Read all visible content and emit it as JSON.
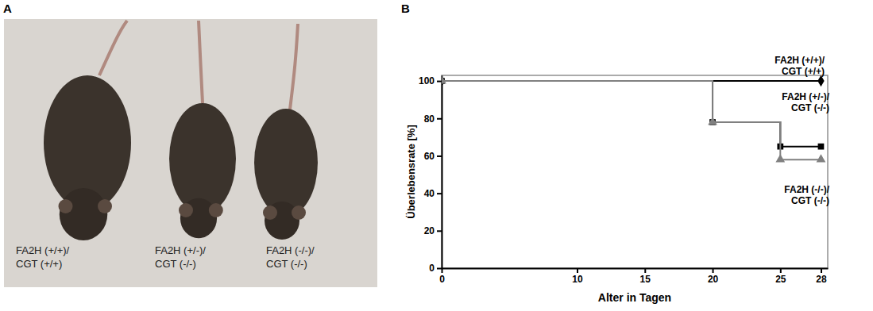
{
  "panel_labels": [
    "A",
    "B"
  ],
  "photo": {
    "labels": [
      "FA2H (+/+)/\nCGT (+/+)",
      "FA2H (+/-)/\nCGT (-/-)",
      "FA2H (-/-)/\nCGT (-/-)"
    ]
  },
  "chart_data": {
    "type": "line",
    "x_label": "Alter in Tagen",
    "y_label": "Überlebensrate [%]",
    "xlim": [
      0,
      28.5
    ],
    "ylim": [
      0,
      103
    ],
    "xticks": [
      0,
      10,
      15,
      20,
      25,
      28
    ],
    "yticks": [
      0,
      20,
      40,
      60,
      80,
      100
    ],
    "line_style": "step",
    "series": [
      {
        "name": "FA2H (+/+)/\nCGT (+/+)",
        "color": "#000000",
        "marker": "diamond",
        "x": [
          0,
          28
        ],
        "values": [
          100,
          100
        ]
      },
      {
        "name": "FA2H (+/-)/\nCGT (-/-)",
        "color": "#000000",
        "marker": "square",
        "x": [
          0,
          20,
          25,
          28
        ],
        "values": [
          100,
          78,
          65,
          65
        ]
      },
      {
        "name": "FA2H (-/-)/\nCGT (-/-)",
        "color": "#808080",
        "marker": "triangle",
        "x": [
          0,
          20,
          25,
          28
        ],
        "values": [
          100,
          78,
          58,
          58
        ]
      }
    ]
  }
}
